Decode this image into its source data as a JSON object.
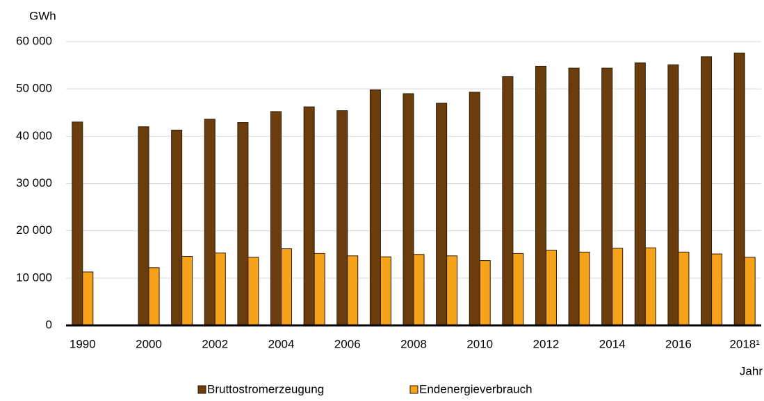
{
  "chart_data": {
    "type": "bar",
    "y_label": "GWh",
    "x_label": "Jahr",
    "categories": [
      "1990",
      null,
      "2000",
      null,
      "2002",
      null,
      "2004",
      null,
      "2006",
      null,
      "2008",
      null,
      "2010",
      null,
      "2012",
      null,
      "2014",
      null,
      "2016",
      null,
      "2018¹"
    ],
    "series": [
      {
        "name": "Bruttostromerzeugung",
        "color": "#6b3d0c",
        "values": [
          43000,
          null,
          42000,
          41300,
          43600,
          42900,
          45200,
          46200,
          45400,
          49800,
          49000,
          47000,
          49300,
          52600,
          54800,
          54400,
          54400,
          55500,
          55100,
          56800,
          57600
        ]
      },
      {
        "name": "Endenergieverbrauch",
        "color": "#f7a21b",
        "values": [
          11300,
          null,
          12200,
          14600,
          15300,
          14400,
          16200,
          15200,
          14700,
          14500,
          15000,
          14700,
          13700,
          15200,
          15900,
          15500,
          16300,
          16400,
          15500,
          15100,
          14400
        ]
      }
    ],
    "ylim": [
      0,
      60000
    ],
    "yticks": [
      0,
      {
        "value": 10000,
        "label": "10 000"
      },
      {
        "value": 20000,
        "label": "20 000"
      },
      {
        "value": 30000,
        "label": "30 000"
      },
      {
        "value": 40000,
        "label": "40 000"
      },
      {
        "value": 50000,
        "label": "50 000"
      },
      {
        "value": 60000,
        "label": "60 000"
      }
    ],
    "grid": true,
    "legend": "bottom"
  }
}
